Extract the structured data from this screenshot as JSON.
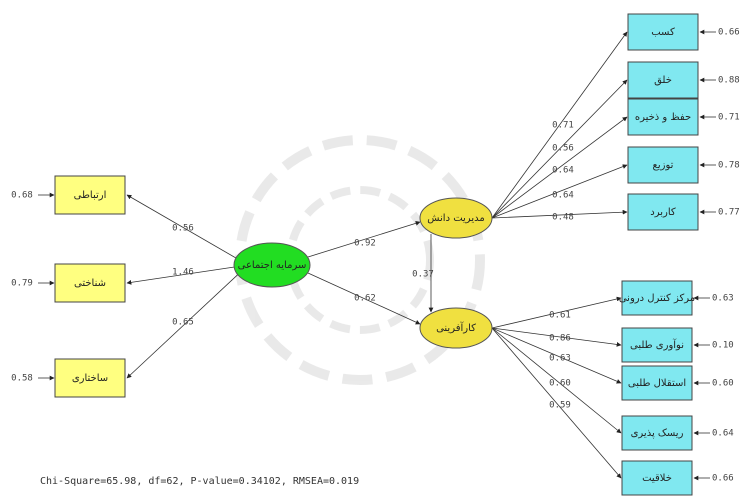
{
  "latent_variables": {
    "social_capital": "سرمایه اجتماعی",
    "knowledge_management": "مدیریت دانش",
    "entrepreneurship": "کارآفرینی"
  },
  "structural_paths": {
    "social_capital_to_knowledge_management": "0.92",
    "social_capital_to_entrepreneurship": "0.62",
    "knowledge_management_to_entrepreneurship": "0.37"
  },
  "social_capital_indicators": [
    {
      "label": "ارتباطی",
      "loading": "0.56",
      "error": "0.68"
    },
    {
      "label": "شناختی",
      "loading": "1.46",
      "error": "0.79"
    },
    {
      "label": "ساختاری",
      "loading": "0.65",
      "error": "0.58"
    }
  ],
  "knowledge_management_indicators": [
    {
      "label": "کسب",
      "loading": "0.71",
      "error": "0.66"
    },
    {
      "label": "خلق",
      "loading": "0.56",
      "error": "0.88"
    },
    {
      "label": "حفظ و ذخیره",
      "loading": "0.64",
      "error": "0.71"
    },
    {
      "label": "توزیع",
      "loading": "0.64",
      "error": "0.78"
    },
    {
      "label": "کاربرد",
      "loading": "0.48",
      "error": "0.77"
    }
  ],
  "entrepreneurship_indicators": [
    {
      "label": "مرکز کنترل درونی",
      "loading": "0.61",
      "error": "0.63"
    },
    {
      "label": "نوآوری طلبی",
      "loading": "0.86",
      "error": "0.10"
    },
    {
      "label": "استقلال طلبی",
      "loading": "0.63",
      "error": "0.60"
    },
    {
      "label": "ریسک پذیری",
      "loading": "0.60",
      "error": "0.64"
    },
    {
      "label": "خلاقیت",
      "loading": "0.59",
      "error": "0.66"
    }
  ],
  "fit_statistics": "Chi-Square=65.98, df=62, P-value=0.34102, RMSEA=0.019"
}
